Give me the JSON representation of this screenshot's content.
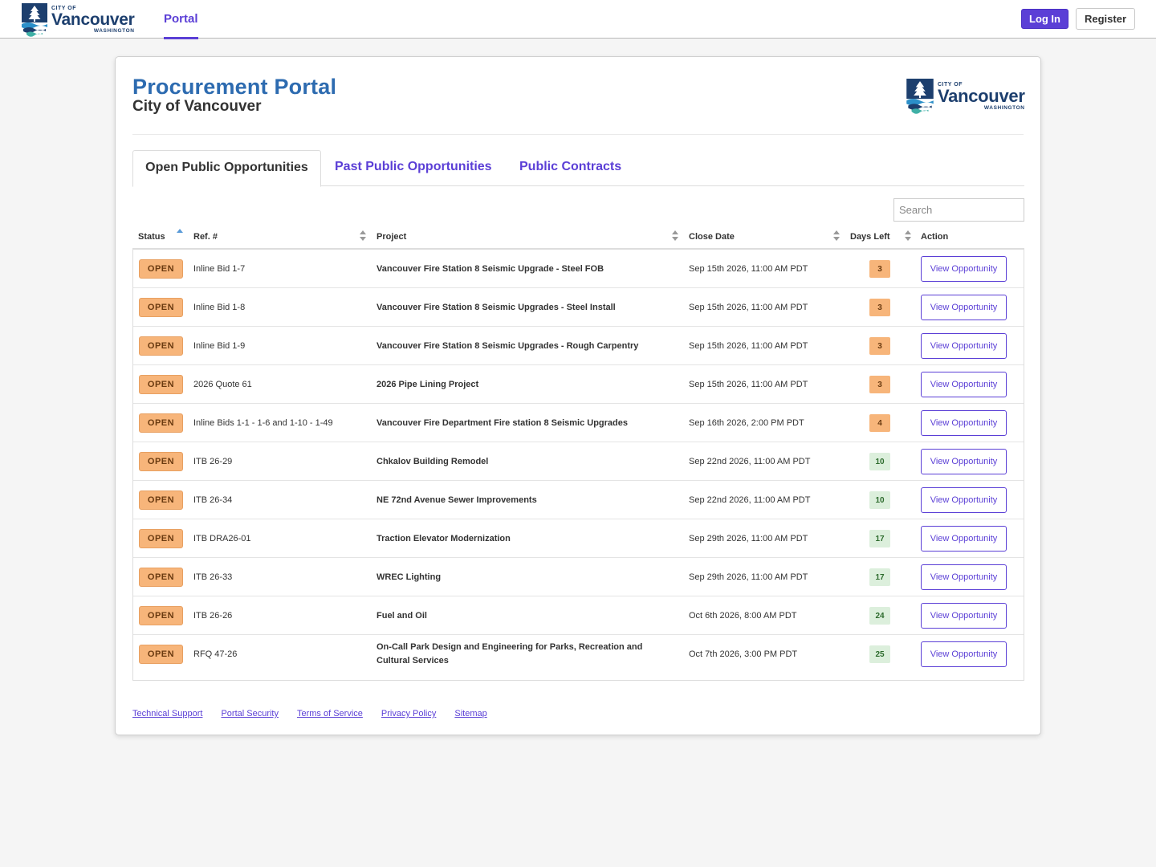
{
  "nav": {
    "logo": {
      "city_of": "CITY OF",
      "name": "Vancouver",
      "state": "WASHINGTON"
    },
    "portal_link": "Portal",
    "login": "Log In",
    "register": "Register"
  },
  "header": {
    "title": "Procurement Portal",
    "subtitle": "City of Vancouver"
  },
  "tabs": [
    {
      "label": "Open Public Opportunities",
      "active": true
    },
    {
      "label": "Past Public Opportunities",
      "active": false
    },
    {
      "label": "Public Contracts",
      "active": false
    }
  ],
  "search": {
    "placeholder": "Search",
    "value": ""
  },
  "table": {
    "columns": [
      "Status",
      "Ref. #",
      "Project",
      "Close Date",
      "Days Left",
      "Action"
    ],
    "rows": [
      {
        "status": "OPEN",
        "ref": "Inline Bid 1-7",
        "project": "Vancouver Fire Station 8 Seismic Upgrade - Steel FOB",
        "close": "Sep 15th 2026, 11:00 AM PDT",
        "days": "3",
        "action": "View Opportunity"
      },
      {
        "status": "OPEN",
        "ref": "Inline Bid 1-8",
        "project": "Vancouver Fire Station 8 Seismic Upgrades - Steel Install",
        "close": "Sep 15th 2026, 11:00 AM PDT",
        "days": "3",
        "action": "View Opportunity"
      },
      {
        "status": "OPEN",
        "ref": "Inline Bid 1-9",
        "project": "Vancouver Fire Station 8 Seismic Upgrades - Rough Carpentry",
        "close": "Sep 15th 2026, 11:00 AM PDT",
        "days": "3",
        "action": "View Opportunity"
      },
      {
        "status": "OPEN",
        "ref": "2026 Quote 61",
        "project": "2026 Pipe Lining Project",
        "close": "Sep 15th 2026, 11:00 AM PDT",
        "days": "3",
        "action": "View Opportunity"
      },
      {
        "status": "OPEN",
        "ref": "Inline Bids 1-1 - 1-6 and 1-10 - 1-49",
        "project": "Vancouver Fire Department Fire station 8 Seismic Upgrades",
        "close": "Sep 16th 2026, 2:00 PM PDT",
        "days": "4",
        "action": "View Opportunity"
      },
      {
        "status": "OPEN",
        "ref": "ITB 26-29",
        "project": "Chkalov Building Remodel",
        "close": "Sep 22nd 2026, 11:00 AM PDT",
        "days": "10",
        "action": "View Opportunity"
      },
      {
        "status": "OPEN",
        "ref": "ITB 26-34",
        "project": "NE 72nd Avenue Sewer Improvements",
        "close": "Sep 22nd 2026, 11:00 AM PDT",
        "days": "10",
        "action": "View Opportunity"
      },
      {
        "status": "OPEN",
        "ref": "ITB DRA26-01",
        "project": "Traction Elevator Modernization",
        "close": "Sep 29th 2026, 11:00 AM PDT",
        "days": "17",
        "action": "View Opportunity"
      },
      {
        "status": "OPEN",
        "ref": "ITB 26-33",
        "project": "WREC Lighting",
        "close": "Sep 29th 2026, 11:00 AM PDT",
        "days": "17",
        "action": "View Opportunity"
      },
      {
        "status": "OPEN",
        "ref": "ITB 26-26",
        "project": "Fuel and Oil",
        "close": "Oct 6th 2026, 8:00 AM PDT",
        "days": "24",
        "action": "View Opportunity"
      },
      {
        "status": "OPEN",
        "ref": "RFQ 47-26",
        "project": "On-Call Park Design and Engineering for Parks, Recreation and Cultural Services",
        "close": "Oct 7th 2026, 3:00 PM PDT",
        "days": "25",
        "action": "View Opportunity"
      }
    ]
  },
  "footer": {
    "links": [
      "Technical Support",
      "Portal Security",
      "Terms of Service",
      "Privacy Policy",
      "Sitemap"
    ]
  },
  "colors": {
    "accent": "#5b3fd6",
    "title_blue": "#2d6bb0",
    "logo_navy": "#1d3f6e",
    "open_badge": "#f7b57a",
    "days_ok": "#dcefdc"
  },
  "icons": {
    "logo": "vancouver-tree-waves-logo",
    "sort": "sort-arrows-icon"
  }
}
